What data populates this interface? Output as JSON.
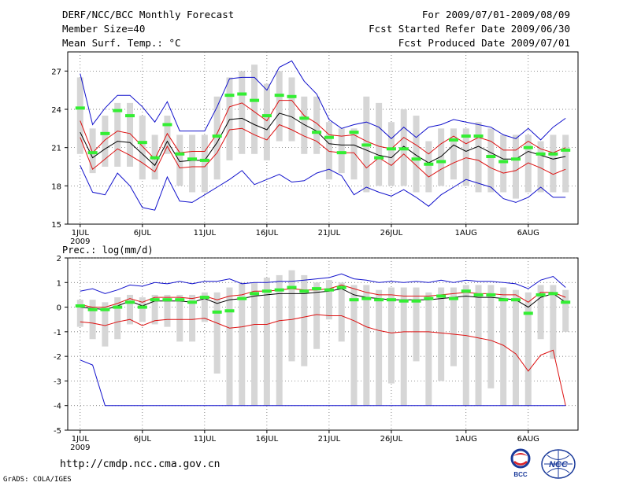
{
  "header": {
    "title": "DERF/NCC/BCC Monthly Forecast",
    "member_size": "Member Size=40",
    "variable": "Mean Surf. Temp.: °C",
    "period": "For 2009/07/01-2009/08/09",
    "started": "Fcst Started Refer Date 2009/06/30",
    "produced": "Fcst Produced Date 2009/07/01"
  },
  "footer": {
    "url": "http://cmdp.ncc.cma.gov.cn",
    "credit": "GrADS: COLA/IGES",
    "logo_left": "BCC",
    "logo_right": "NCC"
  },
  "colors": {
    "mean": "#000000",
    "spread": "#dd1111",
    "range": "#1111cc",
    "bar": "#d6d6d6",
    "obs": "#33ee33",
    "grid": "#555555"
  },
  "chart_data": [
    {
      "type": "line",
      "title": "Mean Surf. Temp.: °C",
      "x_ticks": [
        "1JUL",
        "6JUL",
        "11JUL",
        "16JUL",
        "21JUL",
        "26JUL",
        "1AUG",
        "6AUG"
      ],
      "x_ticks_at_day": [
        1,
        6,
        11,
        16,
        21,
        26,
        32,
        37
      ],
      "x_sublabel": "2009",
      "ylim": [
        15,
        28.5
      ],
      "y_ticks": [
        15,
        18,
        21,
        24,
        27
      ],
      "days": [
        1,
        2,
        3,
        4,
        5,
        6,
        7,
        8,
        9,
        10,
        11,
        12,
        13,
        14,
        15,
        16,
        17,
        18,
        19,
        20,
        21,
        22,
        23,
        24,
        25,
        26,
        27,
        28,
        29,
        30,
        31,
        32,
        33,
        34,
        35,
        36,
        37,
        38,
        39,
        40
      ],
      "series": [
        {
          "name": "ensemble max",
          "values": [
            26.8,
            22.8,
            24.1,
            25.1,
            25.1,
            24.2,
            23.0,
            24.6,
            22.3,
            22.3,
            22.3,
            24.2,
            26.4,
            26.5,
            26.5,
            25.5,
            27.3,
            27.8,
            26.2,
            25.2,
            23.2,
            22.5,
            22.8,
            23.0,
            22.6,
            21.7,
            22.6,
            21.8,
            22.6,
            22.8,
            23.2,
            23.0,
            22.8,
            22.6,
            22.0,
            21.7,
            22.5,
            21.6,
            22.6,
            23.3
          ]
        },
        {
          "name": "mean plus spread",
          "values": [
            23.1,
            20.6,
            21.6,
            22.3,
            22.1,
            21.1,
            20.1,
            22.1,
            20.6,
            20.7,
            20.7,
            22.1,
            24.2,
            24.5,
            23.8,
            23.1,
            24.7,
            24.7,
            23.5,
            22.9,
            22.0,
            21.9,
            22.0,
            21.5,
            21.1,
            20.9,
            21.8,
            21.2,
            20.5,
            21.3,
            21.9,
            21.3,
            21.8,
            21.5,
            20.8,
            20.8,
            21.5,
            20.9,
            20.6,
            21.0
          ]
        },
        {
          "name": "ensemble mean",
          "values": [
            22.2,
            20.2,
            20.9,
            21.5,
            21.4,
            20.5,
            19.6,
            21.5,
            19.9,
            20.0,
            20.0,
            21.4,
            23.2,
            23.3,
            22.8,
            22.4,
            23.7,
            23.4,
            22.8,
            22.3,
            21.3,
            21.2,
            21.2,
            20.8,
            20.4,
            20.2,
            21.1,
            20.4,
            19.8,
            20.3,
            21.2,
            20.7,
            21.1,
            20.6,
            20.1,
            20.1,
            20.7,
            20.4,
            20.1,
            20.3
          ]
        },
        {
          "name": "mean minus spread",
          "values": [
            21.8,
            19.3,
            20.1,
            20.9,
            20.4,
            19.8,
            19.1,
            21.1,
            19.4,
            19.5,
            19.5,
            20.6,
            22.4,
            22.5,
            22.0,
            21.6,
            22.8,
            22.4,
            21.9,
            21.5,
            20.7,
            20.6,
            20.6,
            19.4,
            20.2,
            19.6,
            20.5,
            19.6,
            18.7,
            19.3,
            19.8,
            20.2,
            20.0,
            19.4,
            19.0,
            19.2,
            19.8,
            19.4,
            18.9,
            19.3
          ]
        },
        {
          "name": "ensemble min",
          "values": [
            19.6,
            17.5,
            17.3,
            19.0,
            18.0,
            16.3,
            16.1,
            18.7,
            16.8,
            16.7,
            17.3,
            17.9,
            18.5,
            19.2,
            18.1,
            18.5,
            18.9,
            18.3,
            18.4,
            19.0,
            19.3,
            18.8,
            17.3,
            17.9,
            17.5,
            17.2,
            17.7,
            17.1,
            16.4,
            17.3,
            17.9,
            18.5,
            18.2,
            17.9,
            17.0,
            16.7,
            17.1,
            17.9,
            17.1,
            17.1
          ]
        }
      ],
      "bars": {
        "name": "member spread",
        "low": [
          20.5,
          19.0,
          19.5,
          19.5,
          19.5,
          18.5,
          18.5,
          20.5,
          18.0,
          17.5,
          17.5,
          18.5,
          20.0,
          20.5,
          20.5,
          20.0,
          21.5,
          21.5,
          20.5,
          20.5,
          18.5,
          19.0,
          18.5,
          17.5,
          18.0,
          18.0,
          18.0,
          17.5,
          17.5,
          18.0,
          18.5,
          18.0,
          17.5,
          17.5,
          17.5,
          17.0,
          17.5,
          17.5,
          17.5,
          17.5
        ],
        "high": [
          26.5,
          22.5,
          23.5,
          24.5,
          24.5,
          23.5,
          22.0,
          23.5,
          22.0,
          22.0,
          22.0,
          25.0,
          26.5,
          27.0,
          27.5,
          26.0,
          27.0,
          26.5,
          25.0,
          25.0,
          23.0,
          22.5,
          22.5,
          25.0,
          24.5,
          23.0,
          24.0,
          23.5,
          21.5,
          22.5,
          22.5,
          22.5,
          23.0,
          22.5,
          22.0,
          22.0,
          22.0,
          21.5,
          22.0,
          22.0
        ]
      },
      "observed": {
        "name": "observation",
        "values": [
          24.1,
          20.6,
          22.1,
          23.9,
          23.5,
          21.4,
          20.2,
          22.8,
          20.5,
          20.1,
          20.0,
          21.9,
          25.1,
          25.2,
          24.7,
          23.5,
          25.1,
          25.0,
          23.3,
          22.2,
          21.8,
          20.6,
          22.2,
          21.2,
          20.2,
          20.9,
          20.9,
          20.1,
          19.7,
          19.9,
          21.6,
          21.9,
          21.9,
          20.3,
          19.9,
          20.1,
          21.0,
          20.5,
          20.5,
          20.8
        ]
      }
    },
    {
      "type": "line",
      "title": "Prec.: log(mm/d)",
      "x_ticks": [
        "1JUL",
        "6JUL",
        "11JUL",
        "16JUL",
        "21JUL",
        "26JUL",
        "1AUG",
        "6AUG"
      ],
      "x_ticks_at_day": [
        1,
        6,
        11,
        16,
        21,
        26,
        32,
        37
      ],
      "x_sublabel": "2009",
      "ylim": [
        -5,
        2
      ],
      "y_ticks": [
        -5,
        -4,
        -3,
        -2,
        -1,
        0,
        1,
        2
      ],
      "days": [
        1,
        2,
        3,
        4,
        5,
        6,
        7,
        8,
        9,
        10,
        11,
        12,
        13,
        14,
        15,
        16,
        17,
        18,
        19,
        20,
        21,
        22,
        23,
        24,
        25,
        26,
        27,
        28,
        29,
        30,
        31,
        32,
        33,
        34,
        35,
        36,
        37,
        38,
        39,
        40
      ],
      "series": [
        {
          "name": "ensemble max",
          "values": [
            0.65,
            0.75,
            0.55,
            0.7,
            0.9,
            0.85,
            1.0,
            0.95,
            1.05,
            0.95,
            1.05,
            1.05,
            1.15,
            0.95,
            1.0,
            1.0,
            1.05,
            1.05,
            1.1,
            1.15,
            1.2,
            1.35,
            1.15,
            1.1,
            1.0,
            1.05,
            1.0,
            1.05,
            1.0,
            1.1,
            1.0,
            1.1,
            1.05,
            1.05,
            1.0,
            0.95,
            0.75,
            1.1,
            1.25,
            0.8
          ]
        },
        {
          "name": "mean plus spread",
          "values": [
            0.1,
            0.0,
            0.0,
            0.15,
            0.35,
            0.2,
            0.4,
            0.4,
            0.4,
            0.35,
            0.45,
            0.3,
            0.45,
            0.5,
            0.65,
            0.65,
            0.7,
            0.75,
            0.7,
            0.7,
            0.75,
            0.9,
            0.75,
            0.6,
            0.5,
            0.5,
            0.45,
            0.45,
            0.45,
            0.5,
            0.55,
            0.6,
            0.55,
            0.55,
            0.5,
            0.5,
            0.2,
            0.6,
            0.6,
            0.4
          ]
        },
        {
          "name": "ensemble mean",
          "values": [
            0.0,
            -0.05,
            -0.1,
            0.05,
            0.25,
            0.05,
            0.25,
            0.25,
            0.25,
            0.2,
            0.35,
            0.15,
            0.3,
            0.35,
            0.45,
            0.5,
            0.55,
            0.55,
            0.55,
            0.6,
            0.65,
            0.75,
            0.5,
            0.4,
            0.35,
            0.3,
            0.3,
            0.3,
            0.3,
            0.35,
            0.4,
            0.45,
            0.4,
            0.4,
            0.35,
            0.3,
            0.0,
            0.4,
            0.55,
            0.2
          ]
        },
        {
          "name": "mean minus spread",
          "values": [
            -0.6,
            -0.65,
            -0.75,
            -0.6,
            -0.5,
            -0.75,
            -0.55,
            -0.5,
            -0.5,
            -0.5,
            -0.45,
            -0.65,
            -0.85,
            -0.8,
            -0.7,
            -0.7,
            -0.55,
            -0.5,
            -0.4,
            -0.3,
            -0.35,
            -0.35,
            -0.55,
            -0.8,
            -0.95,
            -1.05,
            -1.0,
            -1.0,
            -1.0,
            -1.05,
            -1.1,
            -1.15,
            -1.25,
            -1.35,
            -1.55,
            -1.9,
            -2.6,
            -1.95,
            -1.75,
            -4.0
          ]
        },
        {
          "name": "ensemble min",
          "values": [
            -2.15,
            -2.35,
            -4.0,
            -4.0,
            -4.0,
            -4.0,
            -4.0,
            -4.0,
            -4.0,
            -4.0,
            -4.0,
            -4.0,
            -4.0,
            -4.0,
            -4.0,
            -4.0,
            -4.0,
            -4.0,
            -4.0,
            -4.0,
            -4.0,
            -4.0,
            -4.0,
            -4.0,
            -4.0,
            -4.0,
            -4.0,
            -4.0,
            -4.0,
            -4.0,
            -4.0,
            -4.0,
            -4.0,
            -4.0,
            -4.0,
            -4.0,
            -4.0,
            -4.0,
            -4.0,
            -4.0
          ]
        }
      ],
      "bars": {
        "name": "member spread",
        "low": [
          -0.8,
          -1.3,
          -1.6,
          -1.3,
          -0.7,
          -0.6,
          -0.7,
          -0.8,
          -1.4,
          -1.4,
          -0.6,
          -2.7,
          -4.0,
          -4.0,
          -4.0,
          -4.0,
          -4.0,
          -2.2,
          -2.4,
          -1.7,
          -0.5,
          -1.4,
          -4.0,
          -4.0,
          -4.0,
          -3.1,
          -4.0,
          -2.2,
          -4.0,
          -3.0,
          -2.4,
          -4.0,
          -4.0,
          -3.3,
          -4.0,
          -4.0,
          -4.0,
          -1.3,
          -2.1,
          -1.0
        ],
        "high": [
          0.3,
          0.3,
          0.2,
          0.4,
          0.5,
          0.4,
          0.5,
          0.5,
          0.5,
          0.5,
          0.6,
          0.6,
          0.8,
          1.0,
          1.0,
          1.2,
          1.3,
          1.5,
          1.3,
          1.0,
          1.1,
          1.0,
          0.9,
          0.9,
          0.7,
          0.8,
          0.8,
          0.8,
          0.6,
          0.8,
          0.8,
          0.9,
          0.9,
          0.9,
          0.8,
          0.7,
          0.6,
          0.9,
          0.9,
          0.7
        ]
      },
      "observed": {
        "name": "observation",
        "values": [
          0.05,
          -0.1,
          -0.1,
          0.0,
          0.2,
          0.0,
          0.3,
          0.3,
          0.3,
          0.2,
          0.4,
          -0.2,
          -0.15,
          0.35,
          0.55,
          0.65,
          0.7,
          0.8,
          0.65,
          0.75,
          0.7,
          0.8,
          0.3,
          0.35,
          0.3,
          0.3,
          0.25,
          0.25,
          0.35,
          0.45,
          0.35,
          0.65,
          0.5,
          0.5,
          0.3,
          0.3,
          -0.25,
          0.5,
          0.55,
          0.2
        ]
      }
    }
  ]
}
